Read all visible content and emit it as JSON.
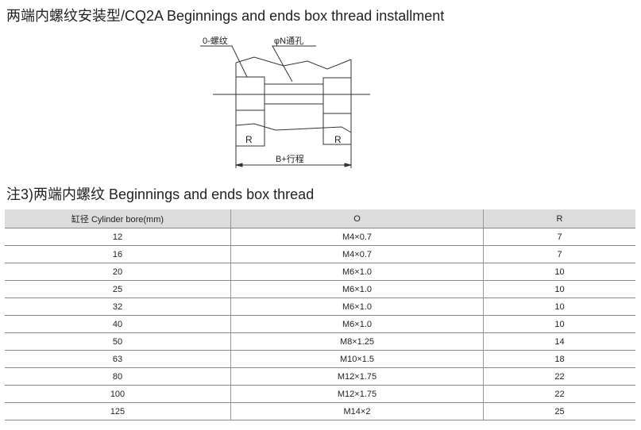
{
  "title": "两端内螺纹安装型/CQ2A Beginnings and ends box thread installment",
  "diagram": {
    "label_thread": "0-螺纹",
    "label_hole": "φN通孔",
    "label_r_left": "R",
    "label_r_right": "R",
    "label_length": "B+行程"
  },
  "subtitle": "注3)两端内螺纹 Beginnings and ends box thread",
  "table": {
    "headers": [
      "缸径 Cylinder bore(mm)",
      "O",
      "R"
    ],
    "rows": [
      [
        "12",
        "M4×0.7",
        "7"
      ],
      [
        "16",
        "M4×0.7",
        "7"
      ],
      [
        "20",
        "M6×1.0",
        "10"
      ],
      [
        "25",
        "M6×1.0",
        "10"
      ],
      [
        "32",
        "M6×1.0",
        "10"
      ],
      [
        "40",
        "M6×1.0",
        "10"
      ],
      [
        "50",
        "M8×1.25",
        "14"
      ],
      [
        "63",
        "M10×1.5",
        "18"
      ],
      [
        "80",
        "M12×1.75",
        "22"
      ],
      [
        "100",
        "M12×1.75",
        "22"
      ],
      [
        "125",
        "M14×2",
        "25"
      ]
    ]
  }
}
